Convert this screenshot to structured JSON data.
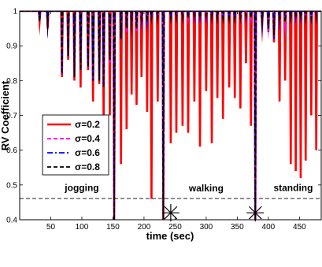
{
  "chart_data": {
    "type": "line",
    "xlabel": "time (sec)",
    "ylabel": "RV Coefficient",
    "xlim": [
      0,
      485
    ],
    "ylim": [
      0.4,
      1.0
    ],
    "xticks": [
      50,
      100,
      150,
      200,
      250,
      300,
      350,
      400,
      450
    ],
    "yticks": [
      0.4,
      0.5,
      0.6,
      0.7,
      0.8,
      0.9,
      1
    ],
    "ytick_labels": [
      "0.4",
      "0.5",
      "0.6",
      "0.7",
      "0.8",
      "0.9",
      "1"
    ],
    "legend_position": "center-left",
    "threshold": {
      "y": 0.461,
      "style": "dashed",
      "color": "#000000"
    },
    "segment_labels": [
      {
        "text": "jogging",
        "x": 100,
        "y": 0.483
      },
      {
        "text": "walking",
        "x": 300,
        "y": 0.481
      },
      {
        "text": "standing",
        "x": 440,
        "y": 0.483
      }
    ],
    "change_points": [
      {
        "x": 243,
        "y": 0.42
      },
      {
        "x": 379,
        "y": 0.42
      }
    ],
    "series": [
      {
        "name": "σ=0.2",
        "color": "#ff0000",
        "dash": "solid",
        "width": 2.6,
        "dips": [
          [
            32,
            0.97
          ],
          [
            45,
            0.95
          ],
          [
            68,
            0.81
          ],
          [
            78,
            0.86
          ],
          [
            88,
            0.8
          ],
          [
            98,
            0.78
          ],
          [
            110,
            0.83
          ],
          [
            118,
            0.74
          ],
          [
            128,
            0.79
          ],
          [
            135,
            0.68
          ],
          [
            145,
            0.7
          ],
          [
            152,
            0.4
          ],
          [
            163,
            0.56
          ],
          [
            172,
            0.66
          ],
          [
            180,
            0.76
          ],
          [
            188,
            0.73
          ],
          [
            196,
            0.81
          ],
          [
            205,
            0.71
          ],
          [
            212,
            0.46
          ],
          [
            222,
            0.74
          ],
          [
            231,
            0.4
          ],
          [
            243,
            0.62
          ],
          [
            252,
            0.65
          ],
          [
            262,
            0.67
          ],
          [
            271,
            0.65
          ],
          [
            281,
            0.74
          ],
          [
            290,
            0.61
          ],
          [
            300,
            0.77
          ],
          [
            309,
            0.62
          ],
          [
            318,
            0.75
          ],
          [
            327,
            0.69
          ],
          [
            337,
            0.78
          ],
          [
            346,
            0.75
          ],
          [
            355,
            0.72
          ],
          [
            364,
            0.85
          ],
          [
            372,
            0.67
          ],
          [
            379,
            0.4
          ],
          [
            390,
            0.96
          ],
          [
            400,
            0.94
          ],
          [
            409,
            0.91
          ],
          [
            418,
            0.74
          ],
          [
            427,
            0.8
          ],
          [
            436,
            0.56
          ],
          [
            444,
            0.54
          ],
          [
            452,
            0.52
          ],
          [
            460,
            0.57
          ],
          [
            469,
            0.7
          ],
          [
            477,
            0.6
          ]
        ]
      },
      {
        "name": "σ=0.4",
        "color": "#ff00ff",
        "dash": "dashed",
        "width": 2,
        "dips": [
          [
            32,
            0.97
          ],
          [
            45,
            0.96
          ],
          [
            68,
            0.82
          ],
          [
            78,
            0.87
          ],
          [
            88,
            0.81
          ],
          [
            98,
            0.83
          ],
          [
            110,
            0.84
          ],
          [
            118,
            0.8
          ],
          [
            128,
            0.8
          ],
          [
            135,
            0.78
          ],
          [
            145,
            0.85
          ],
          [
            152,
            0.4
          ],
          [
            163,
            0.92
          ],
          [
            172,
            0.94
          ],
          [
            180,
            0.95
          ],
          [
            188,
            0.94
          ],
          [
            196,
            0.97
          ],
          [
            205,
            0.96
          ],
          [
            212,
            0.98
          ],
          [
            222,
            0.98
          ],
          [
            231,
            0.4
          ],
          [
            243,
            0.98
          ],
          [
            252,
            0.98
          ],
          [
            262,
            0.98
          ],
          [
            271,
            0.98
          ],
          [
            281,
            0.98
          ],
          [
            290,
            0.98
          ],
          [
            300,
            0.98
          ],
          [
            309,
            0.98
          ],
          [
            318,
            0.98
          ],
          [
            327,
            0.98
          ],
          [
            337,
            0.98
          ],
          [
            346,
            0.98
          ],
          [
            355,
            0.98
          ],
          [
            364,
            0.98
          ],
          [
            372,
            0.98
          ],
          [
            379,
            0.4
          ],
          [
            390,
            0.97
          ],
          [
            400,
            0.96
          ],
          [
            409,
            0.95
          ],
          [
            418,
            0.97
          ],
          [
            427,
            0.96
          ],
          [
            436,
            0.98
          ],
          [
            444,
            0.98
          ],
          [
            452,
            0.98
          ],
          [
            460,
            0.98
          ],
          [
            469,
            0.98
          ],
          [
            477,
            0.98
          ]
        ]
      },
      {
        "name": "σ=0.6",
        "color": "#0000ff",
        "dash": "dashdot",
        "width": 1.8,
        "dips": [
          [
            32,
            0.97
          ],
          [
            45,
            0.96
          ],
          [
            68,
            0.82
          ],
          [
            78,
            0.87
          ],
          [
            88,
            0.81
          ],
          [
            98,
            0.83
          ],
          [
            110,
            0.84
          ],
          [
            118,
            0.8
          ],
          [
            128,
            0.8
          ],
          [
            135,
            0.78
          ],
          [
            145,
            0.86
          ],
          [
            152,
            0.4
          ],
          [
            163,
            0.92
          ],
          [
            172,
            0.95
          ],
          [
            180,
            0.96
          ],
          [
            188,
            0.95
          ],
          [
            196,
            0.97
          ],
          [
            205,
            0.97
          ],
          [
            212,
            0.98
          ],
          [
            222,
            0.98
          ],
          [
            231,
            0.4
          ],
          [
            243,
            0.98
          ],
          [
            252,
            0.98
          ],
          [
            262,
            0.98
          ],
          [
            271,
            0.98
          ],
          [
            281,
            0.98
          ],
          [
            290,
            0.98
          ],
          [
            300,
            0.98
          ],
          [
            309,
            0.98
          ],
          [
            318,
            0.98
          ],
          [
            327,
            0.98
          ],
          [
            337,
            0.98
          ],
          [
            346,
            0.98
          ],
          [
            355,
            0.98
          ],
          [
            364,
            0.98
          ],
          [
            372,
            0.98
          ],
          [
            379,
            0.4
          ],
          [
            390,
            0.96
          ],
          [
            400,
            0.94
          ],
          [
            409,
            0.92
          ],
          [
            418,
            0.97
          ],
          [
            427,
            0.97
          ],
          [
            436,
            0.98
          ],
          [
            444,
            0.98
          ],
          [
            452,
            0.98
          ],
          [
            460,
            0.98
          ],
          [
            469,
            0.98
          ],
          [
            477,
            0.98
          ]
        ]
      },
      {
        "name": "σ=0.8",
        "color": "#000000",
        "dash": "dashed",
        "width": 1.8,
        "dips": [
          [
            32,
            0.97
          ],
          [
            45,
            0.96
          ],
          [
            68,
            0.82
          ],
          [
            78,
            0.87
          ],
          [
            88,
            0.81
          ],
          [
            98,
            0.83
          ],
          [
            110,
            0.84
          ],
          [
            118,
            0.8
          ],
          [
            128,
            0.8
          ],
          [
            135,
            0.78
          ],
          [
            145,
            0.86
          ],
          [
            152,
            0.4
          ],
          [
            163,
            0.92
          ],
          [
            172,
            0.95
          ],
          [
            180,
            0.96
          ],
          [
            188,
            0.95
          ],
          [
            196,
            0.97
          ],
          [
            205,
            0.97
          ],
          [
            212,
            0.98
          ],
          [
            222,
            0.98
          ],
          [
            231,
            0.4
          ],
          [
            243,
            0.98
          ],
          [
            252,
            0.98
          ],
          [
            262,
            0.98
          ],
          [
            271,
            0.98
          ],
          [
            281,
            0.98
          ],
          [
            290,
            0.98
          ],
          [
            300,
            0.98
          ],
          [
            309,
            0.98
          ],
          [
            318,
            0.98
          ],
          [
            327,
            0.98
          ],
          [
            337,
            0.98
          ],
          [
            346,
            0.98
          ],
          [
            355,
            0.98
          ],
          [
            364,
            0.98
          ],
          [
            372,
            0.98
          ],
          [
            379,
            0.4
          ],
          [
            390,
            0.97
          ],
          [
            400,
            0.95
          ],
          [
            409,
            0.93
          ],
          [
            418,
            0.97
          ],
          [
            427,
            0.97
          ],
          [
            436,
            0.98
          ],
          [
            444,
            0.98
          ],
          [
            452,
            0.98
          ],
          [
            460,
            0.98
          ],
          [
            469,
            0.98
          ],
          [
            477,
            0.98
          ]
        ]
      }
    ]
  }
}
